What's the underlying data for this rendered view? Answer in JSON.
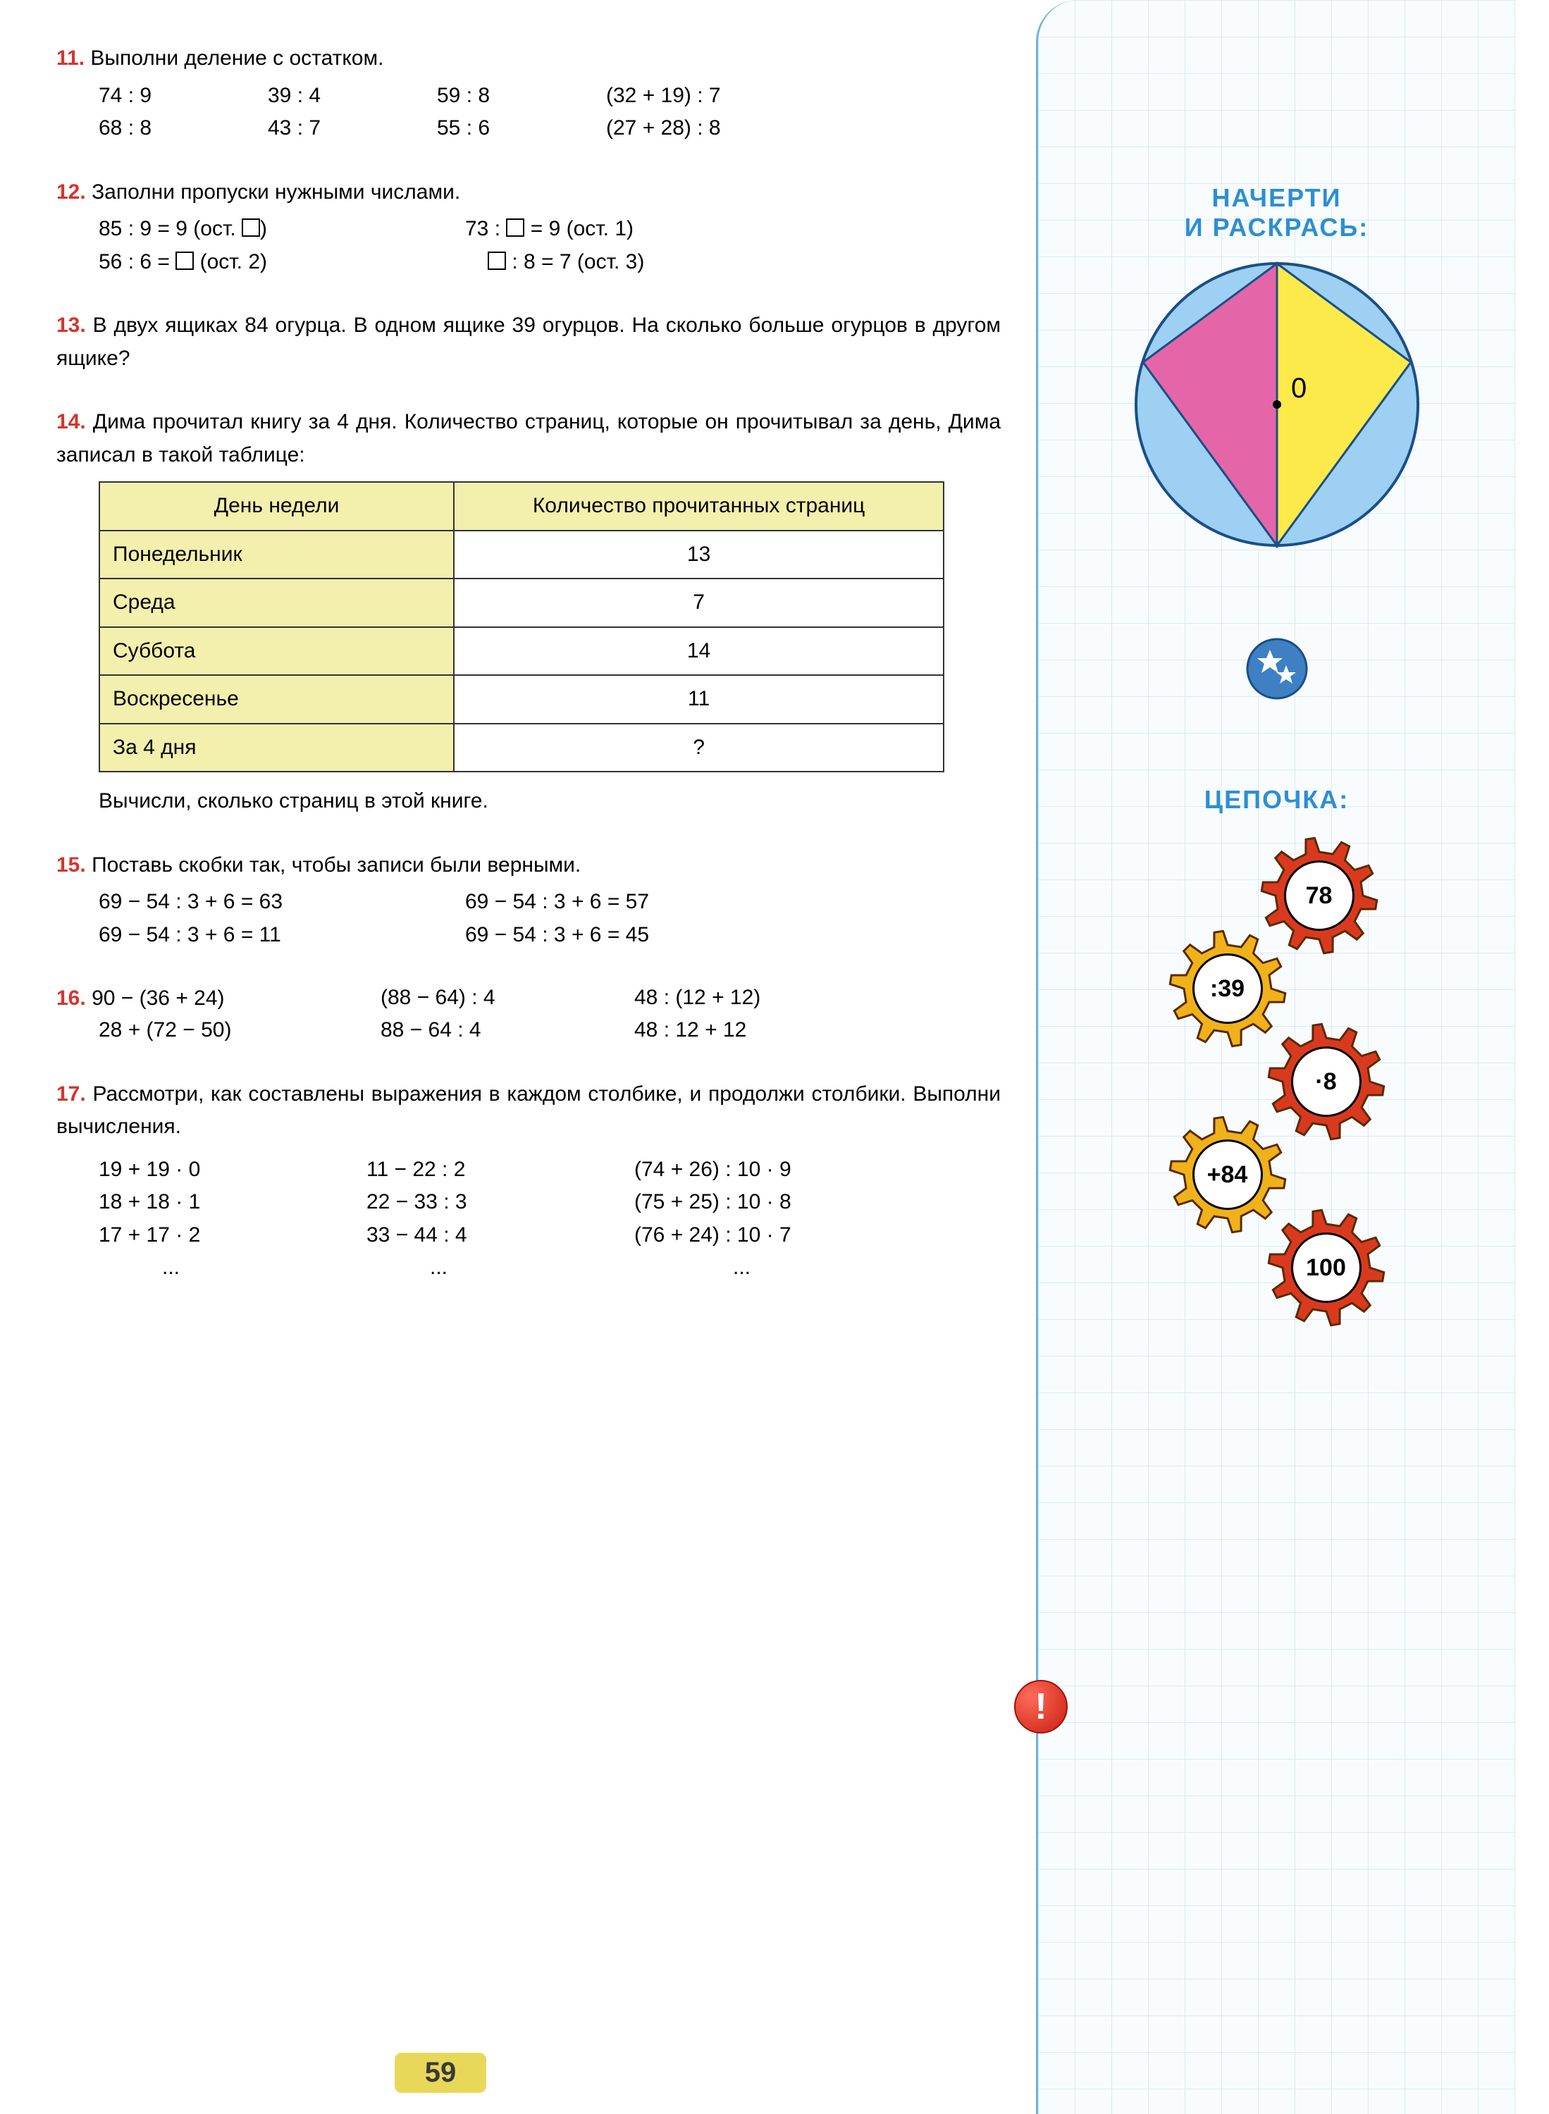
{
  "colors": {
    "problem_number": "#d6342c",
    "side_text": "#2d8fd0",
    "table_header_bg": "#f3efad",
    "grid_line": "#dceaf5",
    "page_badge_bg": "#e8d85a"
  },
  "page_number": "59",
  "sidebar": {
    "title1_line1": "НАЧЕРТИ",
    "title1_line2": "И  РАСКРАСЬ:",
    "circle": {
      "center_label": "0",
      "radius": 200,
      "fill_bg": "#9dd0f2",
      "fill_left": "#e566a8",
      "fill_right": "#fce94a",
      "stroke": "#1a4f86"
    },
    "title2": "ЦЕПОЧКА:",
    "chain": [
      {
        "label": "78",
        "color": "#d93a1f"
      },
      {
        "label": ":39",
        "color": "#f0b21a"
      },
      {
        "label": "·8",
        "color": "#d93a1f"
      },
      {
        "label": "+84",
        "color": "#f0b21a"
      },
      {
        "label": "100",
        "color": "#d93a1f"
      }
    ],
    "exclamation": "!"
  },
  "p11": {
    "num": "11.",
    "text": "Выполни деление с остатком.",
    "rows": [
      [
        "74 : 9",
        "39 : 4",
        "59 : 8",
        "(32 + 19) : 7"
      ],
      [
        "68 : 8",
        "43 : 7",
        "55 : 6",
        "(27 + 28) : 8"
      ]
    ]
  },
  "p12": {
    "num": "12.",
    "text": "Заполни пропуски нужными числами.",
    "lines": {
      "a1": "85 : 9 = 9  (ост.  ",
      "a2": ")",
      "b1": "73 : ",
      "b2": " = 9  (ост.  1)",
      "c1": "56 : 6 = ",
      "c2": "  (ост.  2)",
      "d1": "",
      "d2": " : 8 = 7  (ост.  3)"
    }
  },
  "p13": {
    "num": "13.",
    "text": "В двух ящиках 84 огурца. В одном ящике 39 огурцов. На сколько больше огурцов в другом ящике?"
  },
  "p14": {
    "num": "14.",
    "text": "Дима прочитал книгу за 4 дня. Количество страниц, которые он прочитывал за день, Дима записал в такой таблице:",
    "table": {
      "headers": [
        "День недели",
        "Количество прочитанных страниц"
      ],
      "rows": [
        [
          "Понедельник",
          "13"
        ],
        [
          "Среда",
          "7"
        ],
        [
          "Суббота",
          "14"
        ],
        [
          "Воскресенье",
          "11"
        ],
        [
          "За 4 дня",
          "?"
        ]
      ]
    },
    "after": "Вычисли, сколько страниц в этой книге."
  },
  "p15": {
    "num": "15.",
    "text": "Поставь скобки так, чтобы записи были верными.",
    "rows": [
      [
        "69 − 54 : 3 + 6 = 63",
        "69 − 54 : 3 + 6 = 57"
      ],
      [
        "69 − 54 : 3 + 6 = 11",
        "69 − 54 : 3 + 6 = 45"
      ]
    ]
  },
  "p16": {
    "num": "16.",
    "rows": [
      [
        "90 − (36 + 24)",
        "(88 − 64) : 4",
        "48 : (12 + 12)"
      ],
      [
        "28 + (72 − 50)",
        "88 − 64 : 4",
        "48 : 12 + 12"
      ]
    ]
  },
  "p17": {
    "num": "17.",
    "text": "Рассмотри, как составлены выражения в каждом столбике, и продолжи столбики. Выполни вычисления.",
    "cols": [
      [
        "19 + 19 · 0",
        "18 + 18 · 1",
        "17 + 17 · 2",
        "..."
      ],
      [
        "11 − 22 : 2",
        "22 − 33 : 3",
        "33 − 44 : 4",
        "..."
      ],
      [
        "(74 + 26) : 10 · 9",
        "(75 + 25) : 10 · 8",
        "(76 + 24) : 10 · 7",
        "..."
      ]
    ]
  }
}
